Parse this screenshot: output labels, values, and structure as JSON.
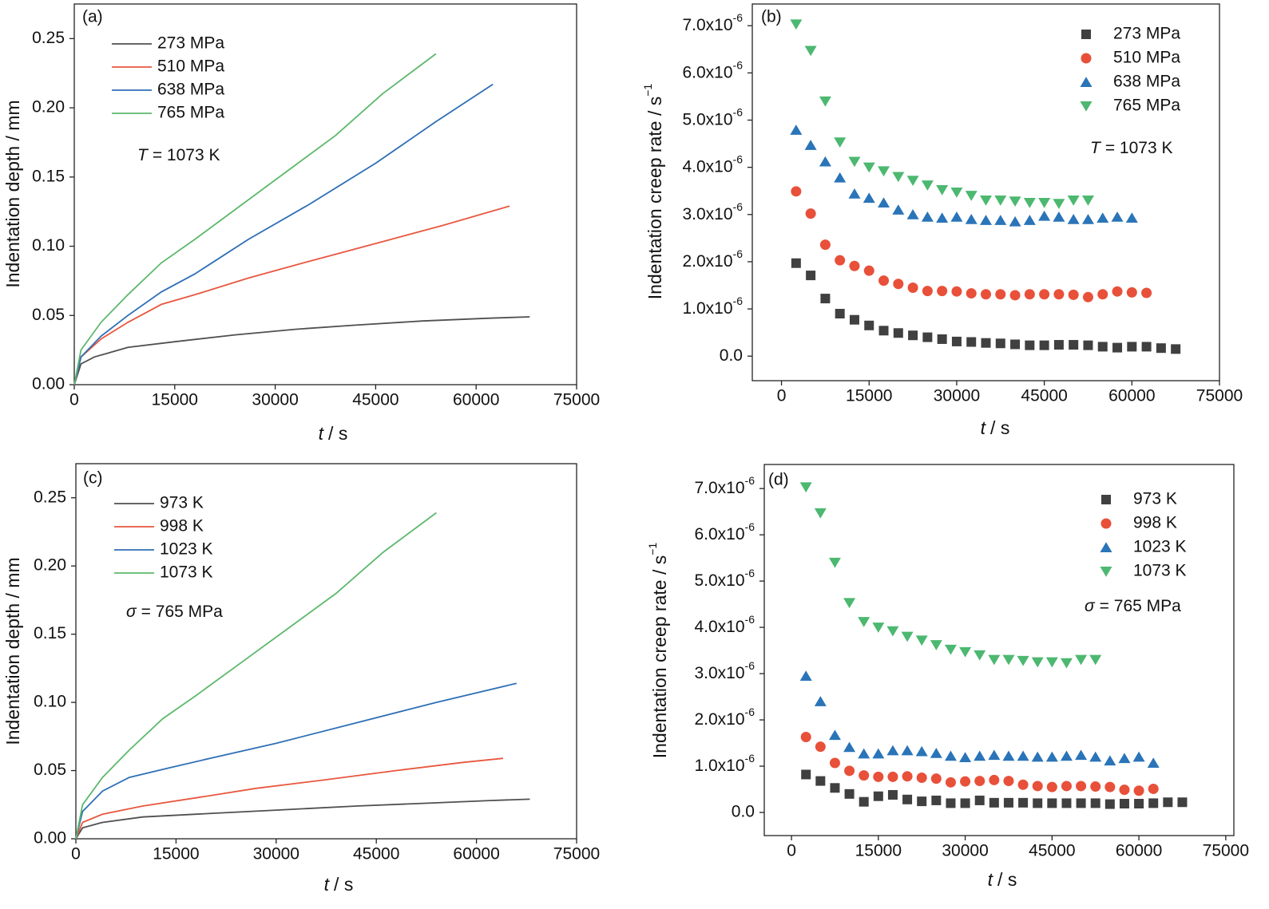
{
  "chart_data": [
    {
      "type": "line",
      "panel_label": "(a)",
      "xlabel": {
        "symbol": "t",
        "text": "/ s"
      },
      "ylabel": {
        "text": "Indentation depth / mm"
      },
      "annotation": {
        "symbol": "T",
        "text": "= 1073 K"
      },
      "xlim": [
        0,
        75000
      ],
      "ylim": [
        0,
        0.275
      ],
      "xticks": [
        0,
        15000,
        30000,
        45000,
        60000,
        75000
      ],
      "yticks": [
        {
          "value": 0,
          "label": "0.00"
        },
        0.05,
        {
          "value": 0.1,
          "label": "0.10"
        },
        0.15,
        {
          "value": 0.2,
          "label": "0.20"
        },
        0.25
      ],
      "series": [
        {
          "name": "273 MPa",
          "color": "#505050",
          "x": [
            0,
            1000,
            3000,
            8000,
            15000,
            24000,
            33000,
            42000,
            52000,
            62000,
            68000
          ],
          "values": [
            0,
            0.015,
            0.02,
            0.027,
            0.031,
            0.036,
            0.04,
            0.043,
            0.046,
            0.048,
            0.049
          ]
        },
        {
          "name": "510 MPa",
          "color": "#e8573f",
          "x": [
            0,
            1000,
            4000,
            8000,
            13000,
            18000,
            26000,
            35000,
            45000,
            55000,
            65000
          ],
          "values": [
            0,
            0.02,
            0.033,
            0.045,
            0.058,
            0.065,
            0.077,
            0.089,
            0.102,
            0.115,
            0.129
          ]
        },
        {
          "name": "638 MPa",
          "color": "#2e6fb5",
          "x": [
            0,
            1000,
            4000,
            8000,
            13000,
            18000,
            26000,
            35000,
            45000,
            54000,
            62500
          ],
          "values": [
            0,
            0.02,
            0.035,
            0.05,
            0.067,
            0.08,
            0.105,
            0.13,
            0.16,
            0.19,
            0.217
          ]
        },
        {
          "name": "765 MPa",
          "color": "#5cb86c",
          "x": [
            0,
            1000,
            4000,
            8000,
            13000,
            18000,
            25000,
            32000,
            39000,
            46000,
            54000
          ],
          "values": [
            0,
            0.025,
            0.045,
            0.065,
            0.088,
            0.105,
            0.13,
            0.155,
            0.18,
            0.21,
            0.239
          ]
        }
      ]
    },
    {
      "type": "scatter",
      "panel_label": "(b)",
      "xlabel": {
        "symbol": "t",
        "text": "/ s"
      },
      "ylabel": {
        "text": "Indentation creep rate / s",
        "exponent": "−1"
      },
      "annotation": {
        "symbol": "T",
        "text": "= 1073 K"
      },
      "xlim": [
        -5000,
        75000
      ],
      "ylim": [
        -5.2e-07,
        7.46e-06
      ],
      "xticks": [
        0,
        15000,
        30000,
        45000,
        60000,
        75000
      ],
      "yticks": [
        {
          "value": 0,
          "label": "0.0"
        },
        {
          "value": 1e-06,
          "label": "1.0x10",
          "exponent": "-6"
        },
        {
          "value": 2e-06,
          "label": "2.0x10",
          "exponent": "-6"
        },
        {
          "value": 3e-06,
          "label": "3.0x10",
          "exponent": "-6"
        },
        {
          "value": 4e-06,
          "label": "4.0x10",
          "exponent": "-6"
        },
        {
          "value": 5e-06,
          "label": "5.0x10",
          "exponent": "-6"
        },
        {
          "value": 6e-06,
          "label": "6.0x10",
          "exponent": "-6"
        },
        {
          "value": 7e-06,
          "label": "7.0x10",
          "exponent": "-6"
        }
      ],
      "series": [
        {
          "name": "273 MPa",
          "color": "#404040",
          "marker": "square",
          "x": [
            2500,
            5000,
            7500,
            10000,
            12500,
            15000,
            17500,
            20000,
            22500,
            25000,
            27500,
            30000,
            32500,
            35000,
            37500,
            40000,
            42500,
            45000,
            47500,
            50000,
            52500,
            55000,
            57500,
            60000,
            62500,
            65000,
            67500
          ],
          "values": [
            1.97e-06,
            1.71e-06,
            1.22e-06,
            9e-07,
            7.7e-07,
            6.5e-07,
            5.4e-07,
            4.9e-07,
            4.4e-07,
            4e-07,
            3.6e-07,
            3.1e-07,
            3e-07,
            2.8e-07,
            2.7e-07,
            2.5e-07,
            2.3e-07,
            2.3e-07,
            2.4e-07,
            2.4e-07,
            2.3e-07,
            2e-07,
            1.8e-07,
            2e-07,
            2e-07,
            1.7e-07,
            1.5e-07
          ]
        },
        {
          "name": "510 MPa",
          "color": "#e8503a",
          "marker": "circle",
          "x": [
            2500,
            5000,
            7500,
            10000,
            12500,
            15000,
            17500,
            20000,
            22500,
            25000,
            27500,
            30000,
            32500,
            35000,
            37500,
            40000,
            42500,
            45000,
            47500,
            50000,
            52500,
            55000,
            57500,
            60000,
            62500
          ],
          "values": [
            3.49e-06,
            3.02e-06,
            2.36e-06,
            2.03e-06,
            1.91e-06,
            1.81e-06,
            1.6e-06,
            1.53e-06,
            1.45e-06,
            1.38e-06,
            1.38e-06,
            1.37e-06,
            1.33e-06,
            1.31e-06,
            1.31e-06,
            1.29e-06,
            1.31e-06,
            1.31e-06,
            1.31e-06,
            1.3e-06,
            1.25e-06,
            1.31e-06,
            1.37e-06,
            1.35e-06,
            1.34e-06
          ]
        },
        {
          "name": "638 MPa",
          "color": "#2a74b8",
          "marker": "triangle-up",
          "x": [
            2500,
            5000,
            7500,
            10000,
            12500,
            15000,
            17500,
            20000,
            22500,
            25000,
            27500,
            30000,
            32500,
            35000,
            37500,
            40000,
            42500,
            45000,
            47500,
            50000,
            52500,
            55000,
            57500,
            60000
          ],
          "values": [
            4.79e-06,
            4.47e-06,
            4.12e-06,
            3.78e-06,
            3.44e-06,
            3.35e-06,
            3.25e-06,
            3.1e-06,
            3e-06,
            2.95e-06,
            2.93e-06,
            2.95e-06,
            2.9e-06,
            2.88e-06,
            2.88e-06,
            2.85e-06,
            2.88e-06,
            2.97e-06,
            2.95e-06,
            2.9e-06,
            2.9e-06,
            2.93e-06,
            2.95e-06,
            2.93e-06
          ]
        },
        {
          "name": "765 MPa",
          "color": "#4cb870",
          "marker": "triangle-down",
          "x": [
            2500,
            5000,
            7500,
            10000,
            12500,
            15000,
            17500,
            20000,
            22500,
            25000,
            27500,
            30000,
            32500,
            35000,
            37500,
            40000,
            42500,
            45000,
            47500,
            50000,
            52500
          ],
          "values": [
            7.03e-06,
            6.47e-06,
            5.4e-06,
            4.53e-06,
            4.12e-06,
            4e-06,
            3.92e-06,
            3.8e-06,
            3.72e-06,
            3.62e-06,
            3.52e-06,
            3.47e-06,
            3.4e-06,
            3.3e-06,
            3.3e-06,
            3.28e-06,
            3.25e-06,
            3.25e-06,
            3.23e-06,
            3.3e-06,
            3.3e-06
          ]
        }
      ]
    },
    {
      "type": "line",
      "panel_label": "(c)",
      "xlabel": {
        "symbol": "t",
        "text": "/ s"
      },
      "ylabel": {
        "text": "Indentation depth / mm"
      },
      "annotation": {
        "symbol": "σ",
        "text": "= 765 MPa"
      },
      "xlim": [
        0,
        75000
      ],
      "ylim": [
        0,
        0.275
      ],
      "xticks": [
        0,
        15000,
        30000,
        45000,
        60000,
        75000
      ],
      "yticks": [
        {
          "value": 0,
          "label": "0.00"
        },
        0.05,
        {
          "value": 0.1,
          "label": "0.10"
        },
        0.15,
        {
          "value": 0.2,
          "label": "0.20"
        },
        0.25
      ],
      "series": [
        {
          "name": "973 K",
          "color": "#505050",
          "x": [
            0,
            1000,
            4000,
            10000,
            18000,
            30000,
            42000,
            52000,
            62000,
            68000
          ],
          "values": [
            0,
            0.008,
            0.012,
            0.016,
            0.018,
            0.021,
            0.024,
            0.026,
            0.028,
            0.029
          ]
        },
        {
          "name": "998 K",
          "color": "#e8573f",
          "x": [
            0,
            1000,
            4000,
            10000,
            18000,
            27000,
            37000,
            48000,
            58000,
            64000
          ],
          "values": [
            0,
            0.012,
            0.018,
            0.024,
            0.03,
            0.037,
            0.043,
            0.05,
            0.056,
            0.059
          ]
        },
        {
          "name": "1023 K",
          "color": "#2e6fb5",
          "x": [
            0,
            1000,
            4000,
            8000,
            14000,
            21000,
            30000,
            42000,
            54000,
            66000
          ],
          "values": [
            0,
            0.02,
            0.035,
            0.045,
            0.052,
            0.06,
            0.07,
            0.085,
            0.1,
            0.114
          ]
        },
        {
          "name": "1073 K",
          "color": "#5cb86c",
          "x": [
            0,
            1000,
            4000,
            8000,
            13000,
            18000,
            25000,
            32000,
            39000,
            46000,
            54000
          ],
          "values": [
            0,
            0.025,
            0.045,
            0.065,
            0.088,
            0.105,
            0.13,
            0.155,
            0.18,
            0.21,
            0.239
          ]
        }
      ]
    },
    {
      "type": "scatter",
      "panel_label": "(d)",
      "xlabel": {
        "symbol": "t",
        "text": "/ s"
      },
      "ylabel": {
        "text": "Indentation creep rate / s",
        "exponent": "−1"
      },
      "annotation": {
        "symbol": "σ",
        "text": "= 765 MPa"
      },
      "xlim": [
        -4700,
        76400
      ],
      "ylim": [
        -5e-07,
        7.52e-06
      ],
      "xticks": [
        0,
        15000,
        30000,
        45000,
        60000,
        75000
      ],
      "yticks": [
        {
          "value": 0,
          "label": "0.0"
        },
        {
          "value": 1e-06,
          "label": "1.0x10",
          "exponent": "-6"
        },
        {
          "value": 2e-06,
          "label": "2.0x10",
          "exponent": "-6"
        },
        {
          "value": 3e-06,
          "label": "3.0x10",
          "exponent": "-6"
        },
        {
          "value": 4e-06,
          "label": "4.0x10",
          "exponent": "-6"
        },
        {
          "value": 5e-06,
          "label": "5.0x10",
          "exponent": "-6"
        },
        {
          "value": 6e-06,
          "label": "6.0x10",
          "exponent": "-6"
        },
        {
          "value": 7e-06,
          "label": "7.0x10",
          "exponent": "-6"
        }
      ],
      "series": [
        {
          "name": "973 K",
          "color": "#404040",
          "marker": "square",
          "x": [
            2500,
            5000,
            7500,
            10000,
            12500,
            15000,
            17500,
            20000,
            22500,
            25000,
            27500,
            30000,
            32500,
            35000,
            37500,
            40000,
            42500,
            45000,
            47500,
            50000,
            52500,
            55000,
            57500,
            60000,
            62500,
            65000,
            67500
          ],
          "values": [
            8.2e-07,
            6.8e-07,
            5.3e-07,
            4e-07,
            2.3e-07,
            3.5e-07,
            3.8e-07,
            2.8e-07,
            2.4e-07,
            2.6e-07,
            2e-07,
            2e-07,
            2.6e-07,
            2.1e-07,
            2.1e-07,
            2.1e-07,
            2e-07,
            2e-07,
            2e-07,
            2e-07,
            2e-07,
            1.8e-07,
            1.9e-07,
            1.9e-07,
            2e-07,
            2.2e-07,
            2.2e-07
          ]
        },
        {
          "name": "998 K",
          "color": "#e8503a",
          "marker": "circle",
          "x": [
            2500,
            5000,
            7500,
            10000,
            12500,
            15000,
            17500,
            20000,
            22500,
            25000,
            27500,
            30000,
            32500,
            35000,
            37500,
            40000,
            42500,
            45000,
            47500,
            50000,
            52500,
            55000,
            57500,
            60000,
            62500
          ],
          "values": [
            1.63e-06,
            1.42e-06,
            1.07e-06,
            9e-07,
            8e-07,
            7.7e-07,
            7.7e-07,
            7.8e-07,
            7.5e-07,
            7.3e-07,
            6.5e-07,
            6.7e-07,
            6.8e-07,
            7e-07,
            6.8e-07,
            6e-07,
            5.7e-07,
            5.5e-07,
            5.7e-07,
            5.7e-07,
            5.6e-07,
            5.5e-07,
            4.9e-07,
            4.7e-07,
            5.1e-07
          ]
        },
        {
          "name": "1023 K",
          "color": "#2a74b8",
          "marker": "triangle-up",
          "x": [
            2500,
            5000,
            7500,
            10000,
            12500,
            15000,
            17500,
            20000,
            22500,
            25000,
            27500,
            30000,
            32500,
            35000,
            37500,
            40000,
            42500,
            45000,
            47500,
            50000,
            52500,
            55000,
            57500,
            60000,
            62500
          ],
          "values": [
            2.95e-06,
            2.4e-06,
            1.67e-06,
            1.41e-06,
            1.27e-06,
            1.27e-06,
            1.34e-06,
            1.34e-06,
            1.32e-06,
            1.28e-06,
            1.22e-06,
            1.19e-06,
            1.22e-06,
            1.24e-06,
            1.22e-06,
            1.22e-06,
            1.2e-06,
            1.2e-06,
            1.22e-06,
            1.24e-06,
            1.2e-06,
            1.12e-06,
            1.17e-06,
            1.2e-06,
            1.07e-06
          ]
        },
        {
          "name": "1073 K",
          "color": "#4cb870",
          "marker": "triangle-down",
          "x": [
            2500,
            5000,
            7500,
            10000,
            12500,
            15000,
            17500,
            20000,
            22500,
            25000,
            27500,
            30000,
            32500,
            35000,
            37500,
            40000,
            42500,
            45000,
            47500,
            50000,
            52500
          ],
          "values": [
            7.03e-06,
            6.47e-06,
            5.4e-06,
            4.53e-06,
            4.12e-06,
            4e-06,
            3.92e-06,
            3.8e-06,
            3.72e-06,
            3.62e-06,
            3.52e-06,
            3.47e-06,
            3.4e-06,
            3.3e-06,
            3.3e-06,
            3.28e-06,
            3.25e-06,
            3.25e-06,
            3.23e-06,
            3.3e-06,
            3.3e-06
          ]
        }
      ]
    }
  ]
}
